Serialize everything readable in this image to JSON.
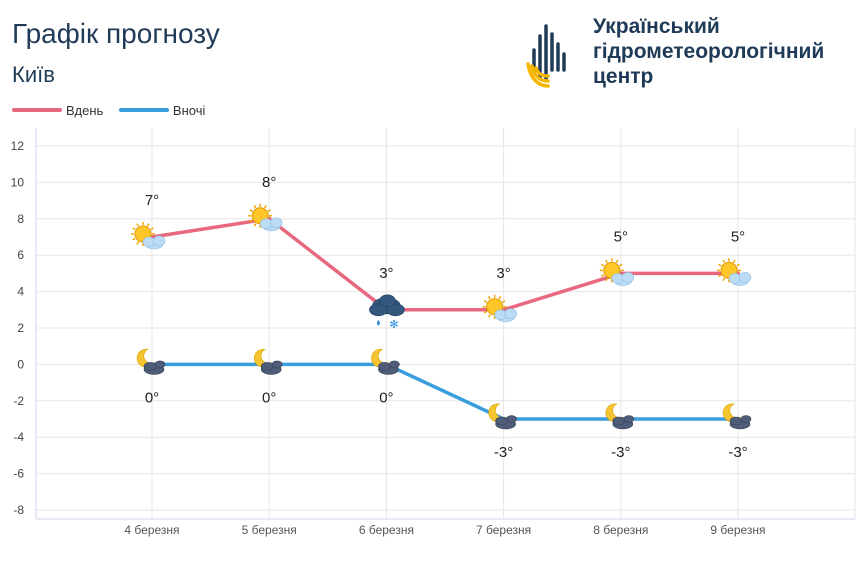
{
  "header": {
    "title": "Графік прогнозу",
    "city": "Київ",
    "org_line1": "Український",
    "org_line2": "гідрометеорологічний",
    "org_line3": "центр"
  },
  "legend": [
    {
      "label": "Вдень",
      "color": "#e8687f"
    },
    {
      "label": "Вночі",
      "color": "#3b9edc"
    }
  ],
  "chart_data": {
    "type": "line",
    "categories": [
      "4 березня",
      "5 березня",
      "6 березня",
      "7 березня",
      "8 березня",
      "9 березня"
    ],
    "series": [
      {
        "name": "Вдень",
        "values": [
          7,
          8,
          3,
          3,
          5,
          5
        ],
        "labels": [
          "7°",
          "8°",
          "3°",
          "3°",
          "5°",
          "5°"
        ],
        "icons": [
          "sun-cloud-icon",
          "sun-cloud-icon",
          "cloud-rain-snow-icon",
          "sun-cloud-icon",
          "sun-cloud-icon",
          "sun-cloud-icon"
        ],
        "color": "#e8687f"
      },
      {
        "name": "Вночі",
        "values": [
          0,
          0,
          0,
          -3,
          -3,
          -3
        ],
        "labels": [
          "0°",
          "0°",
          "0°",
          "-3°",
          "-3°",
          "-3°"
        ],
        "icons": [
          "moon-cloud-icon",
          "moon-cloud-icon",
          "moon-cloud-icon",
          "moon-cloud-icon",
          "moon-cloud-icon",
          "moon-cloud-icon"
        ],
        "color": "#3b9edc"
      }
    ],
    "yticks": [
      12,
      10,
      8,
      6,
      4,
      2,
      0,
      -2,
      -4,
      -6,
      -8
    ],
    "ylim": [
      -8,
      12
    ],
    "grid": true,
    "legend_position": "top-left"
  }
}
